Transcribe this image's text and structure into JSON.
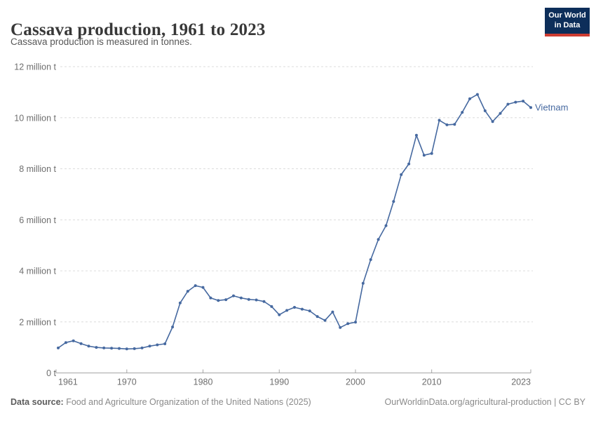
{
  "header": {
    "title": "Cassava production, 1961 to 2023",
    "subtitle": "Cassava production is measured in tonnes."
  },
  "logo": {
    "line1": "Our World",
    "line2": "in Data",
    "bg_color": "#0d2e5a",
    "accent_color": "#ce3c32"
  },
  "chart_data": {
    "type": "line",
    "title": "Cassava production, 1961 to 2023",
    "subtitle": "Cassava production is measured in tonnes.",
    "ylabel": "",
    "xlabel": "",
    "unit": "tonnes",
    "values_are_in": "million tonnes",
    "xlim": [
      1961,
      2023
    ],
    "ylim": [
      0,
      12
    ],
    "grid": "horizontal-dashed",
    "legend_position": "end-of-line-label",
    "x_ticks": [
      1961,
      1970,
      1980,
      1990,
      2000,
      2010,
      2023
    ],
    "y_ticks": [
      {
        "value": 0,
        "label": "0 t"
      },
      {
        "value": 2,
        "label": "2 million t"
      },
      {
        "value": 4,
        "label": "4 million t"
      },
      {
        "value": 6,
        "label": "6 million t"
      },
      {
        "value": 8,
        "label": "8 million t"
      },
      {
        "value": 10,
        "label": "10 million t"
      },
      {
        "value": 12,
        "label": "12 million t"
      }
    ],
    "series": [
      {
        "name": "Vietnam",
        "color": "#4669a0",
        "years": [
          1961,
          1962,
          1963,
          1964,
          1965,
          1966,
          1967,
          1968,
          1969,
          1970,
          1971,
          1972,
          1973,
          1974,
          1975,
          1976,
          1977,
          1978,
          1979,
          1980,
          1981,
          1982,
          1983,
          1984,
          1985,
          1986,
          1987,
          1988,
          1989,
          1990,
          1991,
          1992,
          1993,
          1994,
          1995,
          1996,
          1997,
          1998,
          1999,
          2000,
          2001,
          2002,
          2003,
          2004,
          2005,
          2006,
          2007,
          2008,
          2009,
          2010,
          2011,
          2012,
          2013,
          2014,
          2015,
          2016,
          2017,
          2018,
          2019,
          2020,
          2021,
          2022,
          2023
        ],
        "values": [
          0.98,
          1.19,
          1.26,
          1.15,
          1.05,
          1.0,
          0.98,
          0.97,
          0.96,
          0.94,
          0.95,
          0.98,
          1.05,
          1.1,
          1.14,
          1.8,
          2.74,
          3.2,
          3.42,
          3.35,
          2.94,
          2.84,
          2.87,
          3.02,
          2.94,
          2.88,
          2.86,
          2.8,
          2.6,
          2.28,
          2.45,
          2.57,
          2.5,
          2.43,
          2.21,
          2.06,
          2.39,
          1.78,
          1.93,
          1.99,
          3.51,
          4.44,
          5.23,
          5.77,
          6.72,
          7.77,
          8.19,
          9.31,
          8.53,
          8.6,
          9.9,
          9.72,
          9.74,
          10.21,
          10.74,
          10.91,
          10.27,
          9.85,
          10.17,
          10.53,
          10.61,
          10.65,
          10.4
        ]
      }
    ],
    "colors": {
      "gridline": "#dcdcdc",
      "axis": "#a5a5a5",
      "tick_label": "#6e6e6e"
    }
  },
  "footer": {
    "source_label": "Data source:",
    "source_text": " Food and Agriculture Organization of the United Nations (2025)",
    "credit": "OurWorldinData.org/agricultural-production | CC BY"
  }
}
